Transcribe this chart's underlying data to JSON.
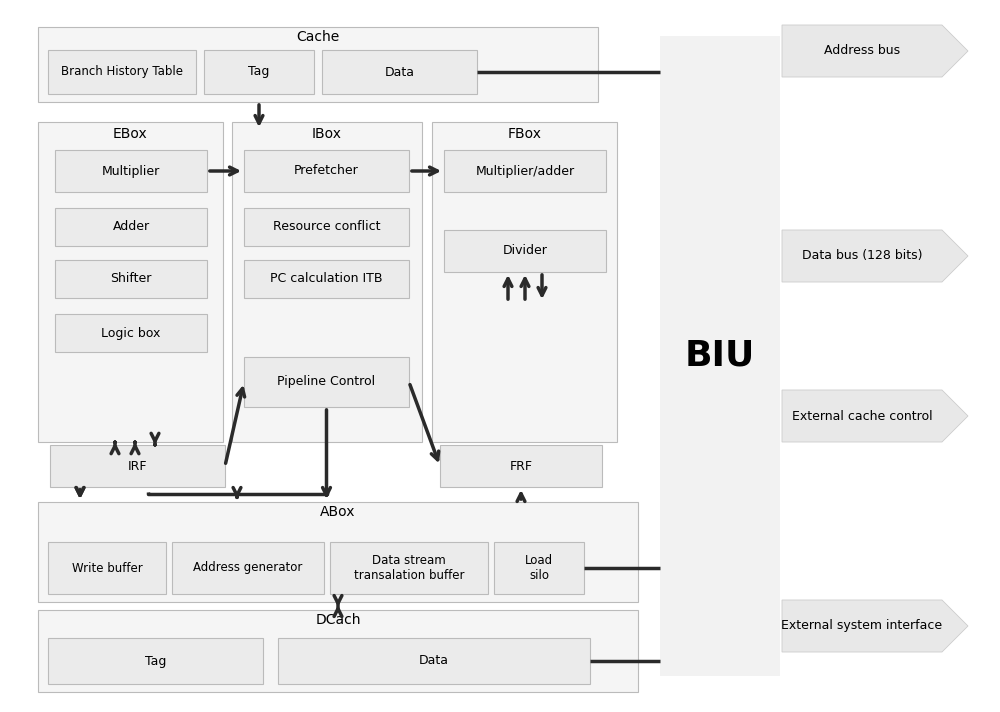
{
  "bg_color": "#ffffff",
  "box_fill_light": "#ebebeb",
  "box_fill_outer": "#f5f5f5",
  "box_edge": "#bbbbbb",
  "arrow_color": "#2a2a2a",
  "labels": {
    "cache": "Cache",
    "cache_bht": "Branch History Table",
    "cache_tag": "Tag",
    "cache_data": "Data",
    "ebox": "EBox",
    "ebox_multiplier": "Multiplier",
    "ebox_adder": "Adder",
    "ebox_shifter": "Shifter",
    "ebox_logicbox": "Logic box",
    "ibox": "IBox",
    "ibox_prefetcher": "Prefetcher",
    "ibox_resource": "Resource conflict",
    "ibox_pc": "PC calculation ITB",
    "ibox_pipeline": "Pipeline Control",
    "fbox": "FBox",
    "fbox_multadd": "Multiplier/adder",
    "fbox_divider": "Divider",
    "irf": "IRF",
    "frf": "FRF",
    "abox": "ABox",
    "abox_wbuf": "Write buffer",
    "abox_addrgen": "Address generator",
    "abox_datastream": "Data stream\ntransalation buffer",
    "abox_loadsilo": "Load\nsilo",
    "dcach": "DCach",
    "dcach_tag": "Tag",
    "dcach_data": "Data",
    "biu": "BIU",
    "address_bus": "Address bus",
    "data_bus": "Data bus (128 bits)",
    "ext_cache": "External cache control",
    "ext_sys": "External system interface"
  }
}
